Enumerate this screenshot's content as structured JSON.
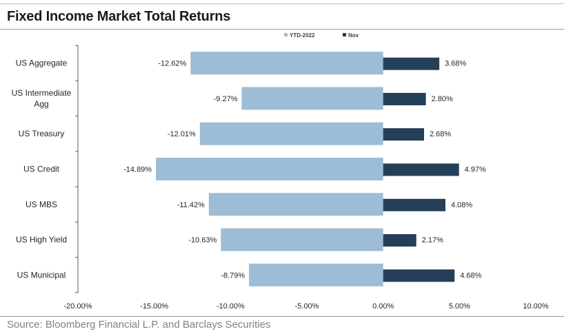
{
  "title": "Fixed Income Market Total Returns",
  "source": "Source: Bloomberg Financial L.P. and Barclays Securities",
  "chart_data": {
    "type": "bar",
    "orientation": "horizontal",
    "categories": [
      [
        "US Aggregate"
      ],
      [
        "US Intermediate",
        "Agg"
      ],
      [
        "US Treasury"
      ],
      [
        "US Credit"
      ],
      [
        "US MBS"
      ],
      [
        "US High Yield"
      ],
      [
        "US Municipal"
      ]
    ],
    "series": [
      {
        "name": "YTD-2022",
        "color": "#9dbcd6",
        "values": [
          -12.62,
          -9.27,
          -12.01,
          -14.89,
          -11.42,
          -10.63,
          -8.79
        ],
        "labels": [
          "-12.62%",
          "-9.27%",
          "-12.01%",
          "-14.89%",
          "-11.42%",
          "-10.63%",
          "-8.79%"
        ]
      },
      {
        "name": "Nov",
        "color": "#243f57",
        "values": [
          3.68,
          2.8,
          2.68,
          4.97,
          4.08,
          2.17,
          4.68
        ],
        "labels": [
          "3.68%",
          "2.80%",
          "2.68%",
          "4.97%",
          "4.08%",
          "2.17%",
          "4.68%"
        ]
      }
    ],
    "xlim": [
      -20,
      10
    ],
    "xticks": [
      -20,
      -15,
      -10,
      -5,
      0,
      5,
      10
    ],
    "xtick_labels": [
      "-20.00%",
      "-15.00%",
      "-10.00%",
      "-5.00%",
      "0.00%",
      "5.00%",
      "10.00%"
    ],
    "legend_position": "top-center",
    "grid": false
  }
}
